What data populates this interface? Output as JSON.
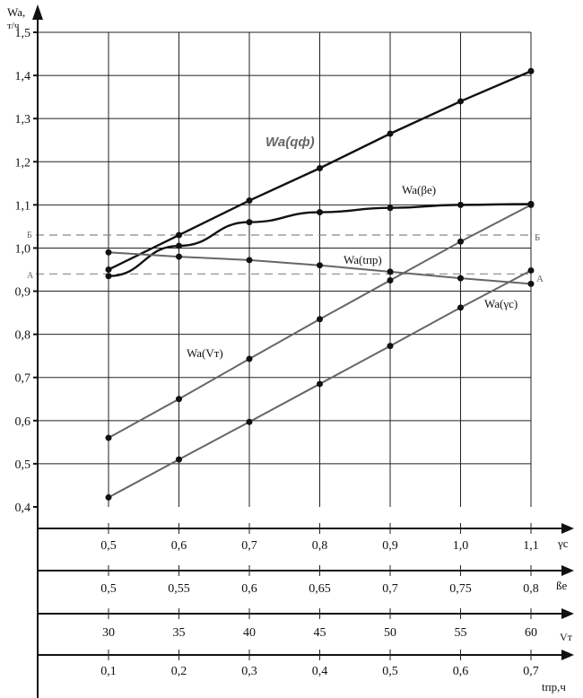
{
  "chart_data": {
    "type": "line",
    "y_axis": {
      "label_line1": "Wa,",
      "label_line2": "т/ч",
      "range": [
        0.4,
        1.5
      ],
      "tick_labels": [
        "0,4",
        "0,5",
        "0,6",
        "0,7",
        "0,8",
        "0,9",
        "1,0",
        "1,1",
        "1,2",
        "1,3",
        "1,4",
        "1,5"
      ]
    },
    "x_axes": [
      {
        "label": "γc",
        "ticks": [
          "0,5",
          "0,6",
          "0,7",
          "0,8",
          "0,9",
          "1,0",
          "1,1"
        ]
      },
      {
        "label": "ßе",
        "ticks": [
          "0,5",
          "0,55",
          "0,6",
          "0,65",
          "0,7",
          "0,75",
          "0,8"
        ]
      },
      {
        "label": "Vт",
        "ticks": [
          "30",
          "35",
          "40",
          "45",
          "50",
          "55",
          "60"
        ]
      },
      {
        "label": "tпр,ч",
        "ticks": [
          "0,1",
          "0,2",
          "0,3",
          "0,4",
          "0,5",
          "0,6",
          "0,7"
        ]
      }
    ],
    "grid": true,
    "reference_lines": [
      {
        "name": "Б",
        "y": 1.03
      },
      {
        "name": "А",
        "y": 0.94
      }
    ],
    "series": [
      {
        "name": "Wa(qф)",
        "color": "#111111",
        "values": [
          0.95,
          1.03,
          1.11,
          1.185,
          1.265,
          1.34,
          1.41
        ]
      },
      {
        "name": "Wa(βe)",
        "color": "#111111",
        "values": [
          0.935,
          1.005,
          1.06,
          1.083,
          1.093,
          1.1,
          1.102
        ]
      },
      {
        "name": "Wa(tпр)",
        "color": "#666666",
        "values": [
          0.99,
          0.98,
          0.972,
          0.96,
          0.945,
          0.93,
          0.917
        ]
      },
      {
        "name": "Wa(Vт)",
        "color": "#666666",
        "values": [
          0.56,
          0.65,
          0.743,
          0.835,
          0.925,
          1.015,
          1.1
        ]
      },
      {
        "name": "Wa(γc)",
        "color": "#666666",
        "values": [
          0.422,
          0.51,
          0.597,
          0.685,
          0.773,
          0.862,
          0.948
        ]
      }
    ]
  }
}
